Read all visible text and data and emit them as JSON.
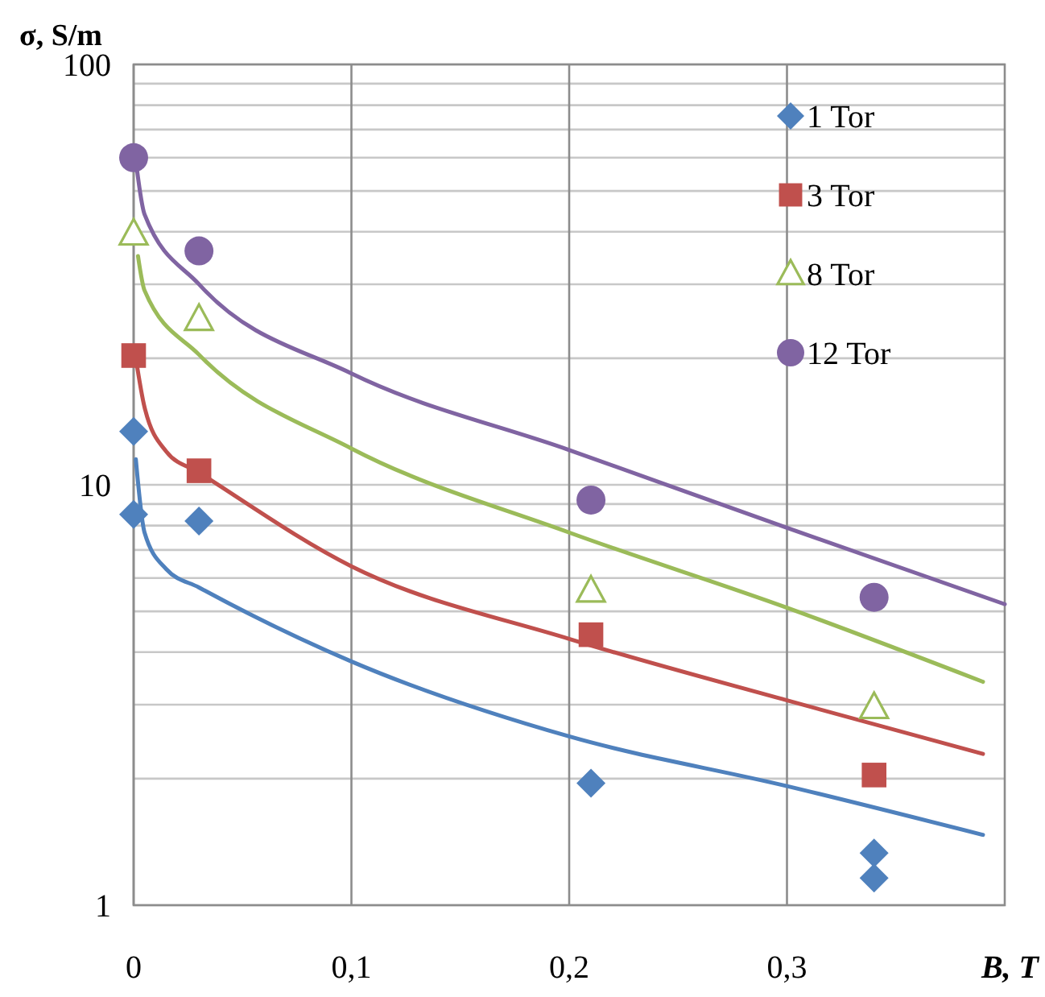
{
  "chart_data": {
    "type": "scatter",
    "ylabel": "σ, S/m",
    "xlabel": "B, T",
    "log": "y",
    "grid": true,
    "legend": "top right",
    "xlim": [
      0,
      0.4
    ],
    "ylim": [
      1,
      100
    ],
    "xticks": [
      0,
      {
        "value": 0.1,
        "label": "0,1"
      },
      {
        "value": 0.2,
        "label": "0,2"
      },
      {
        "value": 0.3,
        "label": "0,3"
      }
    ],
    "yticks": [
      1,
      10,
      100
    ],
    "series": [
      {
        "name": "1 Tor",
        "color": "#4f81bd",
        "marker": "diamond",
        "x": [
          0,
          0,
          0.03,
          0.21,
          0.34,
          0.34
        ],
        "values": [
          13.4,
          8.5,
          8.2,
          1.95,
          1.33,
          1.16
        ]
      },
      {
        "name": "3 Tor",
        "color": "#c0504d",
        "marker": "square",
        "x": [
          0,
          0.03,
          0.21,
          0.34
        ],
        "values": [
          20.3,
          10.8,
          4.4,
          2.04
        ]
      },
      {
        "name": "8 Tor",
        "color": "#9bbb59",
        "marker": "triangle",
        "x": [
          0,
          0.03,
          0.21,
          0.34
        ],
        "values": [
          39.6,
          24.8,
          5.6,
          2.96
        ]
      },
      {
        "name": "12 Tor",
        "color": "#8064a2",
        "marker": "circle",
        "x": [
          0,
          0.03,
          0.21,
          0.34
        ],
        "values": [
          60,
          36,
          9.2,
          5.4
        ]
      },
      {
        "type": "line",
        "color": "#4f81bd",
        "marker": "none",
        "x": [
          0.001,
          0.005,
          0.015,
          0.03,
          0.1,
          0.2,
          0.3,
          0.39
        ],
        "values": [
          11.5,
          7.7,
          6.3,
          5.7,
          3.8,
          2.52,
          1.92,
          1.47
        ]
      },
      {
        "type": "line",
        "color": "#c0504d",
        "marker": "none",
        "x": [
          0.001,
          0.005,
          0.015,
          0.03,
          0.1,
          0.2,
          0.3,
          0.39
        ],
        "values": [
          20,
          15.3,
          12,
          10.7,
          6.4,
          4.3,
          3.07,
          2.29
        ]
      },
      {
        "type": "line",
        "color": "#9bbb59",
        "marker": "none",
        "x": [
          0.002,
          0.005,
          0.03,
          0.1,
          0.2,
          0.3,
          0.39
        ],
        "values": [
          35,
          29,
          20.4,
          12.2,
          7.7,
          5.1,
          3.4
        ]
      },
      {
        "type": "line",
        "color": "#8064a2",
        "marker": "none",
        "x": [
          0.001,
          0.005,
          0.03,
          0.1,
          0.2,
          0.3,
          0.4
        ],
        "values": [
          59,
          44,
          30,
          18.4,
          12.1,
          7.9,
          5.2
        ]
      }
    ]
  }
}
